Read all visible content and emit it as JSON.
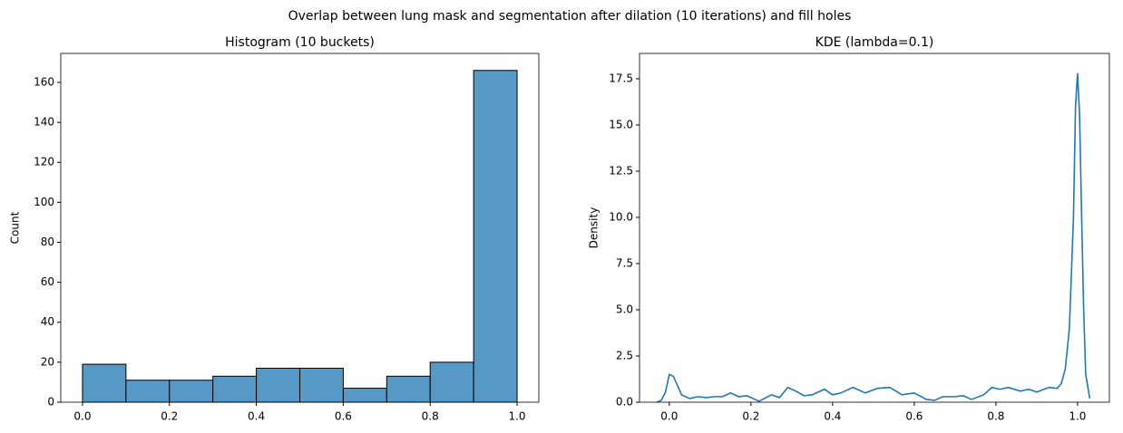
{
  "title": "Overlap between lung mask and segmentation after dilation (10 iterations) and fill holes",
  "chart_data": [
    {
      "type": "histogram",
      "title": "Histogram (10 buckets)",
      "ylabel": "Count",
      "bins": [
        0,
        0.1,
        0.2,
        0.3,
        0.4,
        0.5,
        0.6,
        0.7,
        0.8,
        0.9,
        1.0
      ],
      "values": [
        19,
        11,
        11,
        13,
        17,
        17,
        7,
        13,
        20,
        166
      ],
      "color": "#5799c6",
      "edgecolor": "#000000",
      "xlim": [
        -0.05,
        1.05
      ],
      "ylim": [
        0,
        174.5
      ],
      "xticks": [
        {
          "value": 0,
          "label": "0.0"
        },
        {
          "value": 0.2,
          "label": "0.2"
        },
        {
          "value": 0.4,
          "label": "0.4"
        },
        {
          "value": 0.6,
          "label": "0.6"
        },
        {
          "value": 0.8,
          "label": "0.8"
        },
        {
          "value": 1,
          "label": "1.0"
        }
      ],
      "yticks": [
        0,
        20,
        40,
        60,
        80,
        100,
        120,
        140,
        160
      ]
    },
    {
      "type": "line",
      "title": "KDE (lambda=0.1)",
      "ylabel": "Density",
      "x": [
        -0.03,
        -0.02,
        -0.01,
        0.0,
        0.01,
        0.02,
        0.03,
        0.05,
        0.07,
        0.09,
        0.11,
        0.13,
        0.15,
        0.17,
        0.19,
        0.21,
        0.22,
        0.25,
        0.27,
        0.29,
        0.31,
        0.33,
        0.35,
        0.38,
        0.4,
        0.42,
        0.45,
        0.48,
        0.51,
        0.54,
        0.57,
        0.6,
        0.63,
        0.65,
        0.67,
        0.7,
        0.72,
        0.74,
        0.77,
        0.79,
        0.81,
        0.83,
        0.86,
        0.88,
        0.9,
        0.93,
        0.95,
        0.96,
        0.97,
        0.98,
        0.99,
        0.995,
        1.0,
        1.005,
        1.01,
        1.015,
        1.02,
        1.03
      ],
      "values": [
        0,
        0.1,
        0.5,
        1.5,
        1.4,
        0.9,
        0.4,
        0.2,
        0.3,
        0.25,
        0.3,
        0.3,
        0.5,
        0.3,
        0.35,
        0.15,
        0.05,
        0.4,
        0.25,
        0.8,
        0.6,
        0.35,
        0.4,
        0.7,
        0.4,
        0.5,
        0.8,
        0.5,
        0.75,
        0.8,
        0.4,
        0.5,
        0.15,
        0.1,
        0.3,
        0.3,
        0.35,
        0.15,
        0.4,
        0.8,
        0.7,
        0.8,
        0.6,
        0.7,
        0.55,
        0.8,
        0.75,
        1.0,
        1.8,
        4.0,
        10.0,
        16.0,
        17.8,
        15.5,
        10.0,
        5.0,
        1.5,
        0.2
      ],
      "color": "#1f77b4",
      "xlim": [
        -0.073,
        1.078
      ],
      "ylim": [
        0,
        18.87
      ],
      "xticks": [
        {
          "value": 0,
          "label": "0.0"
        },
        {
          "value": 0.2,
          "label": "0.2"
        },
        {
          "value": 0.4,
          "label": "0.4"
        },
        {
          "value": 0.6,
          "label": "0.6"
        },
        {
          "value": 0.8,
          "label": "0.8"
        },
        {
          "value": 1,
          "label": "1.0"
        }
      ],
      "yticks": [
        {
          "value": 0,
          "label": "0.0"
        },
        {
          "value": 2.5,
          "label": "2.5"
        },
        {
          "value": 5,
          "label": "5.0"
        },
        {
          "value": 7.5,
          "label": "7.5"
        },
        {
          "value": 10,
          "label": "10.0"
        },
        {
          "value": 12.5,
          "label": "12.5"
        },
        {
          "value": 15,
          "label": "15.0"
        },
        {
          "value": 17.5,
          "label": "17.5"
        }
      ]
    }
  ]
}
